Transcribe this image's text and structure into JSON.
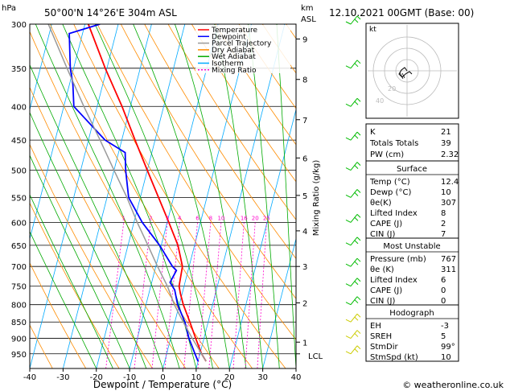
{
  "header": {
    "location": "50°00'N  14°26'E  304m  ASL",
    "datetime": "12.10.2021  00GMT  (Base: 00)",
    "hpa_label": "hPa",
    "km_label": "km",
    "asl_label": "ASL"
  },
  "axes": {
    "xlabel": "Dewpoint / Temperature (°C)",
    "mixing_label": "Mixing Ratio (g/kg)",
    "lcl_label": "LCL",
    "hodo_label": "kt",
    "watermark": "© weatheronline.co.uk"
  },
  "legend": [
    {
      "label": "Temperature",
      "color": "#ff0000",
      "dash": "none"
    },
    {
      "label": "Dewpoint",
      "color": "#0000ff",
      "dash": "none"
    },
    {
      "label": "Parcel Trajectory",
      "color": "#999999",
      "dash": "none"
    },
    {
      "label": "Dry Adiabat",
      "color": "#ff8c00",
      "dash": "none"
    },
    {
      "label": "Wet Adiabat",
      "color": "#00aa00",
      "dash": "none"
    },
    {
      "label": "Isotherm",
      "color": "#00aaff",
      "dash": "none"
    },
    {
      "label": "Mixing Ratio",
      "color": "#ff00cc",
      "dash": "2,2"
    }
  ],
  "indices": {
    "K": "21",
    "Totals Totals": "39",
    "PW (cm)": "2.32"
  },
  "surface": {
    "title": "Surface",
    "rows": [
      [
        "Temp (°C)",
        "12.4"
      ],
      [
        "Dewp (°C)",
        "10"
      ],
      [
        "θe(K)",
        "307"
      ],
      [
        "Lifted Index",
        "8"
      ],
      [
        "CAPE (J)",
        "2"
      ],
      [
        "CIN (J)",
        "7"
      ]
    ]
  },
  "most_unstable": {
    "title": "Most Unstable",
    "rows": [
      [
        "Pressure (mb)",
        "767"
      ],
      [
        "θe (K)",
        "311"
      ],
      [
        "Lifted Index",
        "6"
      ],
      [
        "CAPE (J)",
        "0"
      ],
      [
        "CIN (J)",
        "0"
      ]
    ]
  },
  "hodograph": {
    "title": "Hodograph",
    "rows": [
      [
        "EH",
        "-3"
      ],
      [
        "SREH",
        "5"
      ],
      [
        "StmDir",
        "99°"
      ],
      [
        "StmSpd (kt)",
        "10"
      ]
    ],
    "rings": [
      "40",
      "20"
    ]
  },
  "chart_data": {
    "type": "skew-t",
    "xlabel": "Dewpoint / Temperature (°C)",
    "ylabel": "hPa",
    "xlim": [
      -40,
      40
    ],
    "pressure_levels": [
      300,
      350,
      400,
      450,
      500,
      550,
      600,
      650,
      700,
      750,
      800,
      850,
      900,
      950
    ],
    "temp_ticks": [
      -40,
      -30,
      -20,
      -10,
      0,
      10,
      20,
      30,
      40
    ],
    "height_km": [
      {
        "km": 1,
        "p": 912
      },
      {
        "km": 2,
        "p": 795
      },
      {
        "km": 3,
        "p": 700
      },
      {
        "km": 4,
        "p": 618
      },
      {
        "km": 5,
        "p": 546
      },
      {
        "km": 6,
        "p": 479
      },
      {
        "km": 7,
        "p": 419
      },
      {
        "km": 8,
        "p": 364
      },
      {
        "km": 9,
        "p": 316
      }
    ],
    "mixing_ratio_labels": [
      "1",
      "2",
      "3",
      "4",
      "6",
      "8",
      "10",
      "16",
      "20",
      "25"
    ],
    "series": [
      {
        "name": "Temperature",
        "points": [
          [
            975,
            12.4
          ],
          [
            950,
            10.5
          ],
          [
            900,
            7.5
          ],
          [
            850,
            4.5
          ],
          [
            800,
            1.2
          ],
          [
            770,
            -0.5
          ],
          [
            750,
            -1.5
          ],
          [
            700,
            -2.0
          ],
          [
            650,
            -5.0
          ],
          [
            600,
            -9.5
          ],
          [
            550,
            -14.5
          ],
          [
            500,
            -20.0
          ],
          [
            450,
            -26.0
          ],
          [
            400,
            -32.5
          ],
          [
            350,
            -40.5
          ],
          [
            300,
            -49.0
          ]
        ]
      },
      {
        "name": "Dewpoint",
        "points": [
          [
            975,
            10.0
          ],
          [
            950,
            8.5
          ],
          [
            900,
            5.5
          ],
          [
            850,
            3.0
          ],
          [
            800,
            -0.5
          ],
          [
            780,
            -1.5
          ],
          [
            760,
            -2.5
          ],
          [
            740,
            -4.5
          ],
          [
            710,
            -3.5
          ],
          [
            700,
            -5.0
          ],
          [
            650,
            -10.5
          ],
          [
            600,
            -17.5
          ],
          [
            550,
            -23.5
          ],
          [
            500,
            -26.5
          ],
          [
            470,
            -28.0
          ],
          [
            450,
            -35.0
          ],
          [
            400,
            -47.0
          ],
          [
            370,
            -49.0
          ],
          [
            350,
            -51.0
          ],
          [
            310,
            -54.0
          ],
          [
            300,
            -45.5
          ]
        ]
      },
      {
        "name": "Parcel Trajectory",
        "points": [
          [
            975,
            12.4
          ],
          [
            900,
            6.5
          ],
          [
            850,
            2.5
          ],
          [
            800,
            -1.5
          ],
          [
            750,
            -5.0
          ],
          [
            700,
            -9.5
          ],
          [
            650,
            -14.0
          ],
          [
            600,
            -19.0
          ],
          [
            550,
            -24.0
          ],
          [
            500,
            -30.0
          ],
          [
            450,
            -36.5
          ],
          [
            400,
            -44.0
          ],
          [
            350,
            -52.0
          ],
          [
            300,
            -61.0
          ]
        ]
      }
    ],
    "lcl_pressure": 950,
    "wind_barbs_pressures": [
      950,
      900,
      850,
      800,
      750,
      700,
      650,
      600,
      550,
      500,
      450,
      400,
      350,
      300
    ]
  }
}
